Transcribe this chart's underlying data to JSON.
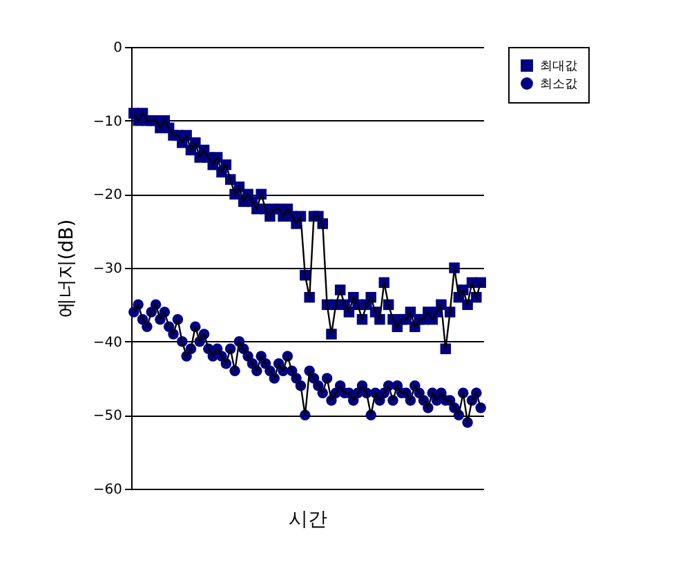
{
  "chart_data": {
    "type": "line",
    "xlabel": "시간",
    "ylabel": "에너지(dB)",
    "categories": [
      null,
      null,
      null,
      null,
      null,
      null,
      null,
      null,
      null,
      null,
      null,
      null,
      null,
      null,
      null,
      null,
      null,
      null,
      null,
      null,
      null,
      null,
      null,
      null,
      null,
      null,
      null,
      null,
      null,
      null,
      null,
      null,
      null,
      null,
      null,
      null,
      null,
      null,
      null,
      null,
      null,
      null,
      null,
      null,
      null,
      null,
      null,
      null,
      null,
      null,
      null,
      null,
      null,
      null,
      null,
      null,
      null,
      null,
      null,
      null,
      null,
      null,
      null,
      null,
      null,
      null,
      null,
      null,
      null,
      null,
      null,
      null,
      null,
      null,
      null,
      null,
      null,
      null,
      null,
      null
    ],
    "series": [
      {
        "name": "최대값",
        "color": "#000080",
        "marker": "square",
        "values": [
          -9,
          -10,
          -9,
          -10,
          -10,
          -10,
          -11,
          -10,
          -11,
          -12,
          -12,
          -13,
          -12,
          -14,
          -13,
          -15,
          -14,
          -15,
          -16,
          -15,
          -17,
          -16,
          -18,
          -20,
          -19,
          -21,
          -20,
          -21,
          -22,
          -20,
          -22,
          -23,
          -22,
          -22,
          -23,
          -22,
          -23,
          -24,
          -23,
          -31,
          -34,
          -23,
          -23,
          -24,
          -35,
          -39,
          -35,
          -33,
          -35,
          -36,
          -34,
          -35,
          -37,
          -35,
          -34,
          -36,
          -37,
          -32,
          -35,
          -37,
          -38,
          -37,
          -37,
          -36,
          -38,
          -37,
          -37,
          -36,
          -37,
          -36,
          -35,
          -41,
          -36,
          -30,
          -34,
          -33,
          -35,
          -32,
          -34,
          -32
        ]
      },
      {
        "name": "최소값",
        "color": "#000080",
        "marker": "circle",
        "values": [
          -36,
          -35,
          -37,
          -38,
          -36,
          -35,
          -37,
          -36,
          -38,
          -39,
          -37,
          -40,
          -42,
          -41,
          -38,
          -40,
          -39,
          -41,
          -42,
          -41,
          -42,
          -43,
          -41,
          -44,
          -40,
          -41,
          -42,
          -43,
          -44,
          -42,
          -43,
          -44,
          -45,
          -43,
          -44,
          -42,
          -44,
          -45,
          -46,
          -50,
          -44,
          -45,
          -46,
          -47,
          -45,
          -48,
          -47,
          -46,
          -47,
          -47,
          -48,
          -47,
          -46,
          -47,
          -50,
          -47,
          -48,
          -47,
          -46,
          -48,
          -46,
          -47,
          -47,
          -48,
          -46,
          -47,
          -48,
          -49,
          -47,
          -48,
          -47,
          -48,
          -48,
          -49,
          -50,
          -47,
          -51,
          -48,
          -47,
          -49
        ]
      }
    ],
    "ylim": [
      -60,
      0
    ],
    "yticks": [
      0,
      -10,
      -20,
      -30,
      -40,
      -50,
      -60
    ],
    "grid": "y",
    "legend": "right",
    "tick_labels": "y"
  }
}
